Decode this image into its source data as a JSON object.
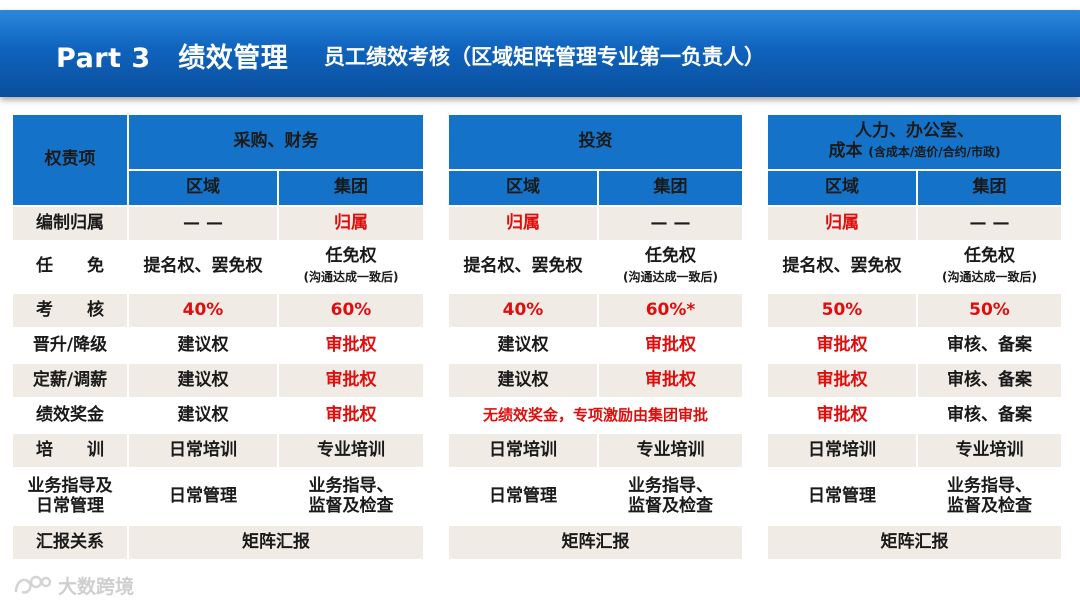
{
  "header": {
    "part_title": "Part 3　绩效管理",
    "subtitle": "员工绩效考核（区域矩阵管理专业第一负责人）"
  },
  "row_labels": [
    "编制归属",
    "任　　免",
    "考　　核",
    "晋升/降级",
    "定薪/调薪",
    "绩效奖金",
    "培　　训",
    "业务指导及\n日常管理",
    "汇报关系"
  ],
  "corner_label": "权责项",
  "tables": [
    {
      "title": "采购、财务",
      "title_note": "",
      "columns": [
        "区域",
        "集团"
      ],
      "rows": [
        [
          "— —",
          "归属"
        ],
        [
          "提名权、罢免权",
          "任免权"
        ],
        [
          "40%",
          "60%"
        ],
        [
          "建议权",
          "审批权"
        ],
        [
          "建议权",
          "审批权"
        ],
        [
          "建议权",
          "审批权"
        ],
        [
          "日常培训",
          "专业培训"
        ],
        [
          "日常管理",
          "业务指导、\n监督及检查"
        ]
      ],
      "appoint_note": "(沟通达成一致后)",
      "report": "矩阵汇报"
    },
    {
      "title": "投资",
      "title_note": "",
      "columns": [
        "区域",
        "集团"
      ],
      "rows": [
        [
          "归属",
          "— —"
        ],
        [
          "提名权、罢免权",
          "任免权"
        ],
        [
          "40%",
          "60%*"
        ],
        [
          "建议权",
          "审批权"
        ],
        [
          "建议权",
          "审批权"
        ],
        [
          "无绩效奖金，专项激励由集团审批"
        ],
        [
          "日常培训",
          "专业培训"
        ],
        [
          "日常管理",
          "业务指导、\n监督及检查"
        ]
      ],
      "appoint_note": "(沟通达成一致后)",
      "report": "矩阵汇报"
    },
    {
      "title": "人力、办公室、",
      "title_line2": "成本",
      "title_note": "(含成本/造价/合约/市政)",
      "columns": [
        "区域",
        "集团"
      ],
      "rows": [
        [
          "归属",
          "— —"
        ],
        [
          "提名权、罢免权",
          "任免权"
        ],
        [
          "50%",
          "50%"
        ],
        [
          "审批权",
          "审核、备案"
        ],
        [
          "审批权",
          "审核、备案"
        ],
        [
          "审批权",
          "审核、备案"
        ],
        [
          "日常培训",
          "专业培训"
        ],
        [
          "日常管理",
          "业务指导、\n监督及检查"
        ]
      ],
      "appoint_note": "(沟通达成一致后)",
      "report": "矩阵汇报"
    }
  ],
  "watermark": "大数跨境",
  "colors": {
    "header_blue": "#1473c8",
    "banner_blue": "#0f63bd",
    "highlight_red": "#e00d0d",
    "stripe": "#f0ece5"
  }
}
